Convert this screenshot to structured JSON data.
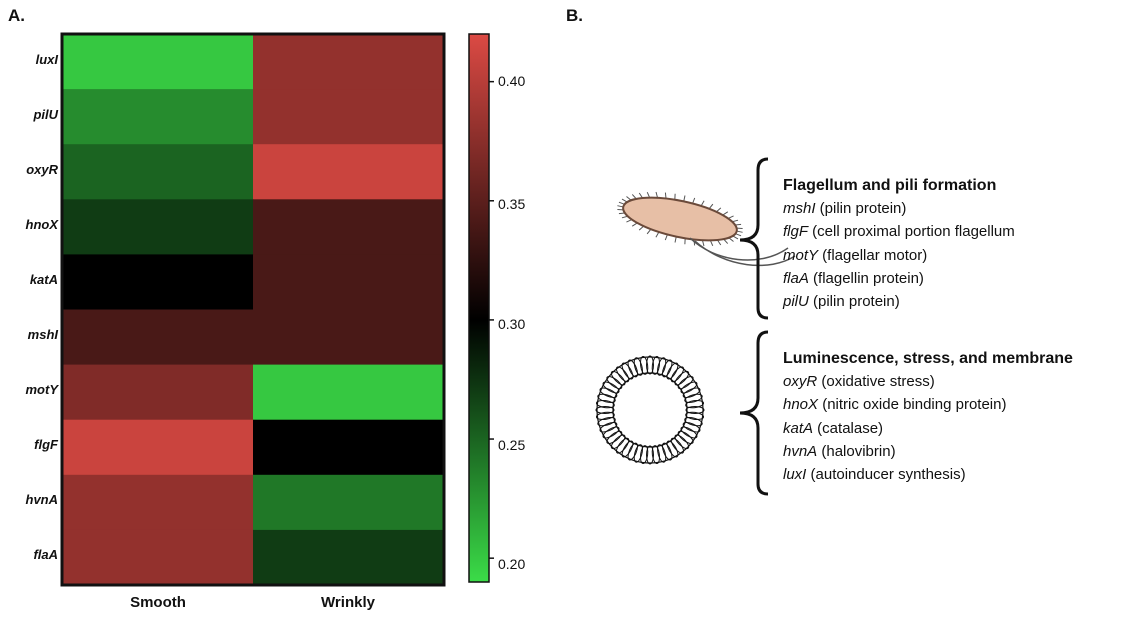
{
  "panels": {
    "a": "A.",
    "b": "B."
  },
  "chart_data": {
    "type": "heatmap",
    "columns": [
      "Smooth",
      "Wrinkly"
    ],
    "rows": [
      "luxI",
      "pilU",
      "oxyR",
      "hnoX",
      "katA",
      "mshI",
      "motY",
      "flgF",
      "hvnA",
      "flaA"
    ],
    "values": [
      [
        0.2,
        0.38
      ],
      [
        0.23,
        0.38
      ],
      [
        0.25,
        0.41
      ],
      [
        0.27,
        0.34
      ],
      [
        0.3,
        0.34
      ],
      [
        0.34,
        0.34
      ],
      [
        0.37,
        0.2
      ],
      [
        0.41,
        0.3
      ],
      [
        0.38,
        0.24
      ],
      [
        0.38,
        0.27
      ]
    ],
    "colorbar": {
      "min": 0.19,
      "max": 0.42,
      "ticks": [
        "0.20",
        "0.25",
        "0.30",
        "0.35",
        "0.40"
      ],
      "colors": {
        "low": "#3bdc48",
        "mid": "#000000",
        "high": "#dc4a44"
      }
    }
  },
  "legend": {
    "groups": [
      {
        "heading": "Flagellum and pili formation",
        "icon": "bacterium-icon",
        "items": [
          {
            "gene": "mshI",
            "desc": " (pilin protein)"
          },
          {
            "gene": "flgF",
            "desc": " (cell proximal portion flagellum"
          },
          {
            "gene": "motY",
            "desc": " (flagellar motor)"
          },
          {
            "gene": "flaA",
            "desc": " (flagellin protein)"
          },
          {
            "gene": "pilU",
            "desc": " (pilin protein)"
          }
        ]
      },
      {
        "heading": "Luminescence, stress, and membrane",
        "icon": "membrane-vesicle-icon",
        "items": [
          {
            "gene": "oxyR",
            "desc": " (oxidative stress)"
          },
          {
            "gene": "hnoX",
            "desc": " (nitric oxide binding protein)"
          },
          {
            "gene": "katA",
            "desc": " (catalase)"
          },
          {
            "gene": "hvnA",
            "desc": " (halovibrin)"
          },
          {
            "gene": "luxI",
            "desc": " (autoinducer synthesis)"
          }
        ]
      }
    ]
  }
}
